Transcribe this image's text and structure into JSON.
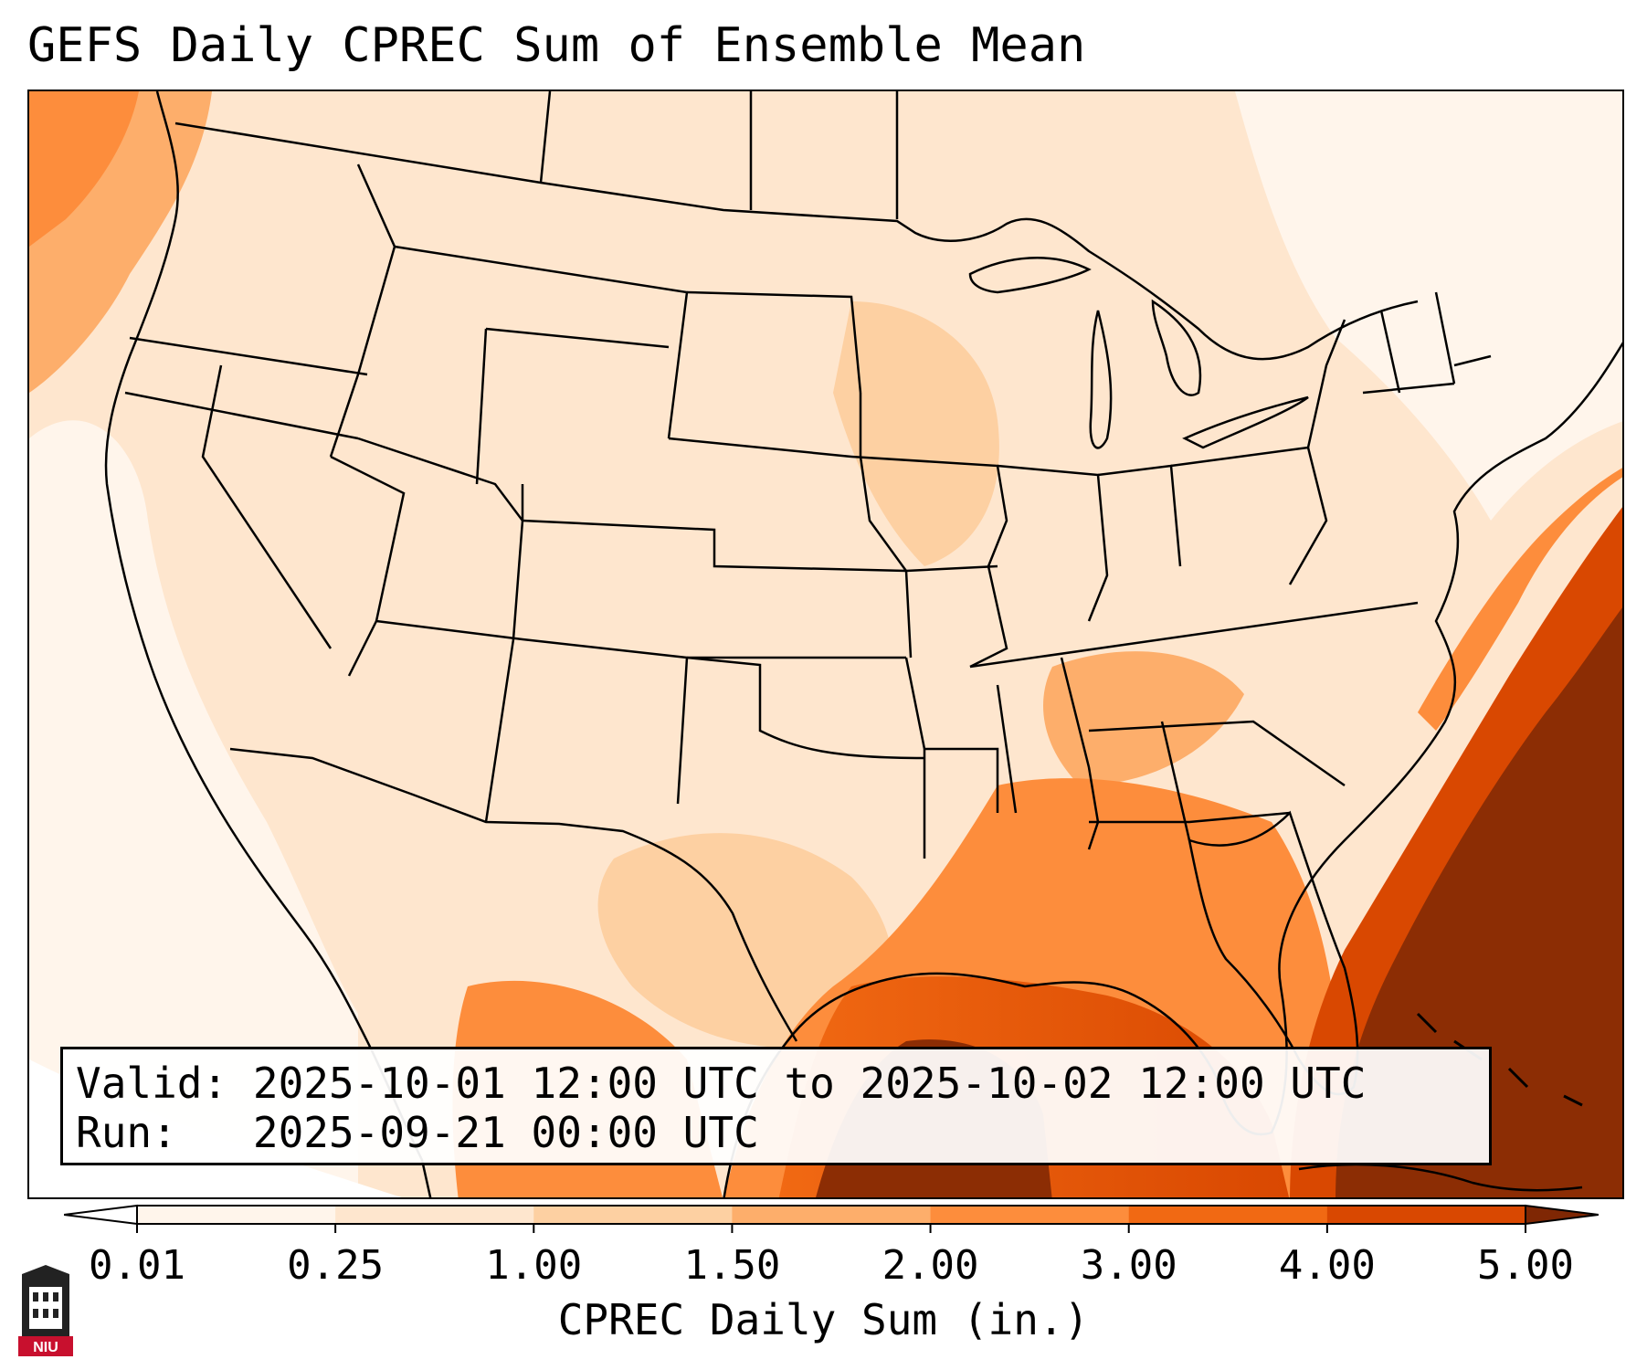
{
  "title": "GEFS Daily CPREC Sum of Ensemble Mean",
  "info": {
    "valid_label": "Valid:",
    "valid_value": "2025-10-01 12:00 UTC to 2025-10-02 12:00 UTC",
    "run_label": "Run:",
    "run_value": "2025-09-21 00:00 UTC"
  },
  "colorbar": {
    "label": "CPREC Daily Sum (in.)",
    "ticks": [
      "0.01",
      "0.25",
      "1.00",
      "1.50",
      "2.00",
      "3.00",
      "4.00",
      "5.00"
    ],
    "colors": [
      "#fff5eb",
      "#fee6ce",
      "#fdd0a2",
      "#fdae6b",
      "#fd8d3c",
      "#f16913",
      "#d94801",
      "#8c2d04"
    ],
    "under_color": "#ffffff",
    "over_color": "#7f2704"
  },
  "logo": {
    "text": "NIU",
    "icon": "university-tower-icon",
    "color": "#c8102e"
  },
  "map": {
    "region": "contiguous-united-states",
    "field": "CPREC daily sum",
    "heaviest_area": "Gulf of Mexico and western Atlantic",
    "borders_icon": "state-boundaries",
    "coastline_icon": "coastline"
  }
}
